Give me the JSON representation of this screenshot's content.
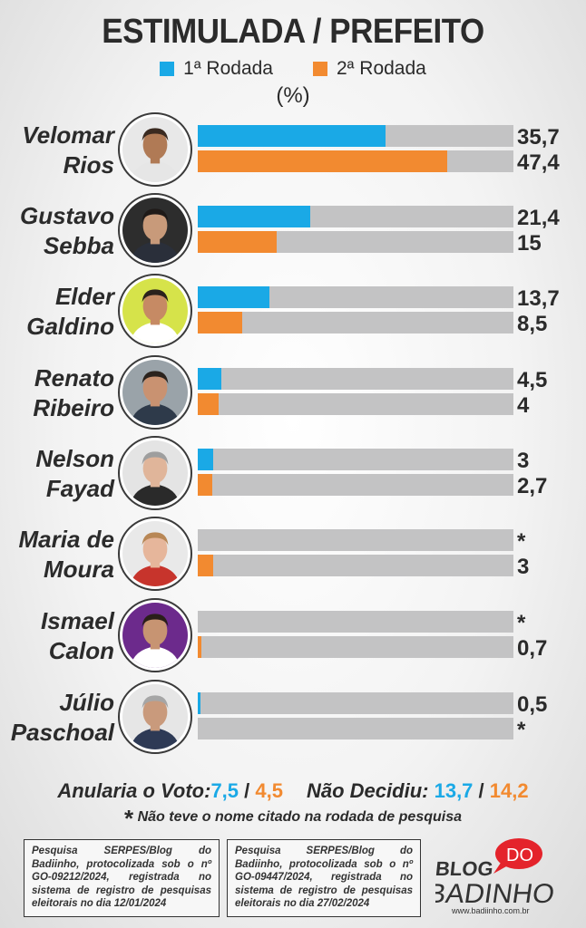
{
  "title": "ESTIMULADA / PREFEITO",
  "unit": "(%)",
  "colors": {
    "round1": "#1aa9e6",
    "round2": "#f28a30",
    "track": "#c3c3c4"
  },
  "chart_data": {
    "type": "bar",
    "orientation": "horizontal",
    "title": "ESTIMULADA / PREFEITO",
    "unit": "%",
    "xlim": [
      0,
      60
    ],
    "categories": [
      "Velomar Rios",
      "Gustavo Sebba",
      "Elder Galdino",
      "Renato Ribeiro",
      "Nelson Fayad",
      "Maria de Moura",
      "Ismael Calon",
      "Júlio Paschoal"
    ],
    "series": [
      {
        "name": "1ª Rodada",
        "values": [
          35.7,
          21.4,
          13.7,
          4.5,
          3,
          null,
          null,
          0.5
        ]
      },
      {
        "name": "2ª Rodada",
        "values": [
          47.4,
          15,
          8.5,
          4,
          2.7,
          3,
          0.7,
          null
        ]
      }
    ]
  },
  "candidates": [
    {
      "line1": "Velomar",
      "line2": "Rios",
      "label1": "35,7",
      "label2": "47,4"
    },
    {
      "line1": "Gustavo",
      "line2": "Sebba",
      "label1": "21,4",
      "label2": "15"
    },
    {
      "line1": "Elder",
      "line2": "Galdino",
      "label1": "13,7",
      "label2": "8,5"
    },
    {
      "line1": "Renato",
      "line2": "Ribeiro",
      "label1": "4,5",
      "label2": "4"
    },
    {
      "line1": "Nelson",
      "line2": "Fayad",
      "label1": "3",
      "label2": "2,7"
    },
    {
      "line1": "Maria de",
      "line2": "Moura",
      "label1": "*",
      "label2": "3"
    },
    {
      "line1": "Ismael",
      "line2": "Calon",
      "label1": "*",
      "label2": "0,7"
    },
    {
      "line1": "Júlio",
      "line2": "Paschoal",
      "label1": "0,5",
      "label2": "*"
    }
  ],
  "summary": {
    "null_label": "Anularia o Voto:",
    "null_r1": "7,5",
    "null_r2": "4,5",
    "undecided_label": "Não Decidiu:",
    "undecided_r1": "13,7",
    "undecided_r2": "14,2",
    "separator": "/"
  },
  "footnote": {
    "star": "*",
    "text": "Não teve o nome citado na rodada de pesquisa"
  },
  "source_box_1": "Pesquisa SERPES/Blog do Badiinho, protocolizada sob o nº GO-09212/2024, registrada no sistema de registro de pesquisas eleitorais no dia 12/01/2024",
  "source_box_2": "Pesquisa SERPES/Blog do Badiinho, protocolizada sob o nº GO-09447/2024, registrada no sistema de registro de pesquisas eleitorais no dia 27/02/2024",
  "logo": {
    "blog": "BLOG",
    "do": "DO",
    "name": "BADINHO",
    "url": "www.badiinho.com.br"
  }
}
